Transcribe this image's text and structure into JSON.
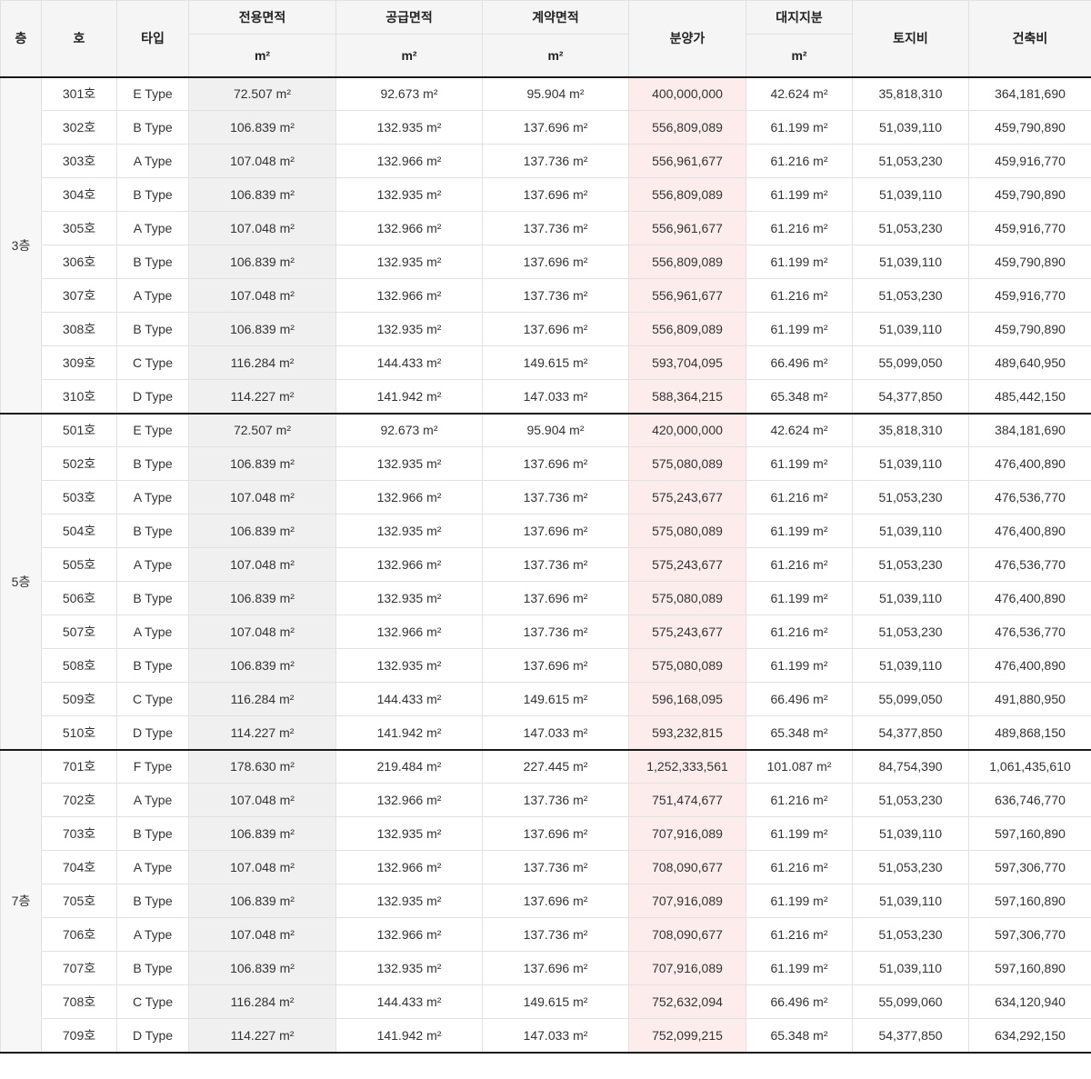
{
  "colors": {
    "header_bg": "#f5f5f5",
    "floor_column_bg": "#f7f7f7",
    "exclusive_area_bg": "#f0f0f0",
    "price_bg": "#fcecec",
    "border": "#e1e1e1",
    "divider": "#1a1a1a",
    "text": "#333333"
  },
  "table": {
    "headers": {
      "floor": "층",
      "unit": "호",
      "type": "타입",
      "exclusive_area": "전용면적",
      "supply_area": "공급면적",
      "contract_area": "계약면적",
      "price": "분양가",
      "land_share": "대지지분",
      "land_cost": "토지비",
      "construction_cost": "건축비",
      "sqm_label": "m²"
    },
    "sections": [
      {
        "floor": "3층",
        "rows": [
          {
            "unit": "301호",
            "type": "E Type",
            "exclusive": "72.507 m²",
            "supply": "92.673 m²",
            "contract": "95.904 m²",
            "price": "400,000,000",
            "land_share": "42.624 m²",
            "land_cost": "35,818,310",
            "construction_cost": "364,181,690"
          },
          {
            "unit": "302호",
            "type": "B Type",
            "exclusive": "106.839 m²",
            "supply": "132.935 m²",
            "contract": "137.696 m²",
            "price": "556,809,089",
            "land_share": "61.199 m²",
            "land_cost": "51,039,110",
            "construction_cost": "459,790,890"
          },
          {
            "unit": "303호",
            "type": "A Type",
            "exclusive": "107.048 m²",
            "supply": "132.966 m²",
            "contract": "137.736 m²",
            "price": "556,961,677",
            "land_share": "61.216 m²",
            "land_cost": "51,053,230",
            "construction_cost": "459,916,770"
          },
          {
            "unit": "304호",
            "type": "B Type",
            "exclusive": "106.839 m²",
            "supply": "132.935 m²",
            "contract": "137.696 m²",
            "price": "556,809,089",
            "land_share": "61.199 m²",
            "land_cost": "51,039,110",
            "construction_cost": "459,790,890"
          },
          {
            "unit": "305호",
            "type": "A Type",
            "exclusive": "107.048 m²",
            "supply": "132.966 m²",
            "contract": "137.736 m²",
            "price": "556,961,677",
            "land_share": "61.216 m²",
            "land_cost": "51,053,230",
            "construction_cost": "459,916,770"
          },
          {
            "unit": "306호",
            "type": "B Type",
            "exclusive": "106.839 m²",
            "supply": "132.935 m²",
            "contract": "137.696 m²",
            "price": "556,809,089",
            "land_share": "61.199 m²",
            "land_cost": "51,039,110",
            "construction_cost": "459,790,890"
          },
          {
            "unit": "307호",
            "type": "A Type",
            "exclusive": "107.048 m²",
            "supply": "132.966 m²",
            "contract": "137.736 m²",
            "price": "556,961,677",
            "land_share": "61.216 m²",
            "land_cost": "51,053,230",
            "construction_cost": "459,916,770"
          },
          {
            "unit": "308호",
            "type": "B Type",
            "exclusive": "106.839 m²",
            "supply": "132.935 m²",
            "contract": "137.696 m²",
            "price": "556,809,089",
            "land_share": "61.199 m²",
            "land_cost": "51,039,110",
            "construction_cost": "459,790,890"
          },
          {
            "unit": "309호",
            "type": "C Type",
            "exclusive": "116.284 m²",
            "supply": "144.433 m²",
            "contract": "149.615 m²",
            "price": "593,704,095",
            "land_share": "66.496 m²",
            "land_cost": "55,099,050",
            "construction_cost": "489,640,950"
          },
          {
            "unit": "310호",
            "type": "D Type",
            "exclusive": "114.227 m²",
            "supply": "141.942 m²",
            "contract": "147.033 m²",
            "price": "588,364,215",
            "land_share": "65.348 m²",
            "land_cost": "54,377,850",
            "construction_cost": "485,442,150"
          }
        ]
      },
      {
        "floor": "5층",
        "rows": [
          {
            "unit": "501호",
            "type": "E Type",
            "exclusive": "72.507 m²",
            "supply": "92.673 m²",
            "contract": "95.904 m²",
            "price": "420,000,000",
            "land_share": "42.624 m²",
            "land_cost": "35,818,310",
            "construction_cost": "384,181,690"
          },
          {
            "unit": "502호",
            "type": "B Type",
            "exclusive": "106.839 m²",
            "supply": "132.935 m²",
            "contract": "137.696 m²",
            "price": "575,080,089",
            "land_share": "61.199 m²",
            "land_cost": "51,039,110",
            "construction_cost": "476,400,890"
          },
          {
            "unit": "503호",
            "type": "A Type",
            "exclusive": "107.048 m²",
            "supply": "132.966 m²",
            "contract": "137.736 m²",
            "price": "575,243,677",
            "land_share": "61.216 m²",
            "land_cost": "51,053,230",
            "construction_cost": "476,536,770"
          },
          {
            "unit": "504호",
            "type": "B Type",
            "exclusive": "106.839 m²",
            "supply": "132.935 m²",
            "contract": "137.696 m²",
            "price": "575,080,089",
            "land_share": "61.199 m²",
            "land_cost": "51,039,110",
            "construction_cost": "476,400,890"
          },
          {
            "unit": "505호",
            "type": "A Type",
            "exclusive": "107.048 m²",
            "supply": "132.966 m²",
            "contract": "137.736 m²",
            "price": "575,243,677",
            "land_share": "61.216 m²",
            "land_cost": "51,053,230",
            "construction_cost": "476,536,770"
          },
          {
            "unit": "506호",
            "type": "B Type",
            "exclusive": "106.839 m²",
            "supply": "132.935 m²",
            "contract": "137.696 m²",
            "price": "575,080,089",
            "land_share": "61.199 m²",
            "land_cost": "51,039,110",
            "construction_cost": "476,400,890"
          },
          {
            "unit": "507호",
            "type": "A Type",
            "exclusive": "107.048 m²",
            "supply": "132.966 m²",
            "contract": "137.736 m²",
            "price": "575,243,677",
            "land_share": "61.216 m²",
            "land_cost": "51,053,230",
            "construction_cost": "476,536,770"
          },
          {
            "unit": "508호",
            "type": "B Type",
            "exclusive": "106.839 m²",
            "supply": "132.935 m²",
            "contract": "137.696 m²",
            "price": "575,080,089",
            "land_share": "61.199 m²",
            "land_cost": "51,039,110",
            "construction_cost": "476,400,890"
          },
          {
            "unit": "509호",
            "type": "C Type",
            "exclusive": "116.284 m²",
            "supply": "144.433 m²",
            "contract": "149.615 m²",
            "price": "596,168,095",
            "land_share": "66.496 m²",
            "land_cost": "55,099,050",
            "construction_cost": "491,880,950"
          },
          {
            "unit": "510호",
            "type": "D Type",
            "exclusive": "114.227 m²",
            "supply": "141.942 m²",
            "contract": "147.033 m²",
            "price": "593,232,815",
            "land_share": "65.348 m²",
            "land_cost": "54,377,850",
            "construction_cost": "489,868,150"
          }
        ]
      },
      {
        "floor": "7층",
        "rows": [
          {
            "unit": "701호",
            "type": "F Type",
            "exclusive": "178.630 m²",
            "supply": "219.484 m²",
            "contract": "227.445 m²",
            "price": "1,252,333,561",
            "land_share": "101.087 m²",
            "land_cost": "84,754,390",
            "construction_cost": "1,061,435,610"
          },
          {
            "unit": "702호",
            "type": "A Type",
            "exclusive": "107.048 m²",
            "supply": "132.966 m²",
            "contract": "137.736 m²",
            "price": "751,474,677",
            "land_share": "61.216 m²",
            "land_cost": "51,053,230",
            "construction_cost": "636,746,770"
          },
          {
            "unit": "703호",
            "type": "B Type",
            "exclusive": "106.839 m²",
            "supply": "132.935 m²",
            "contract": "137.696 m²",
            "price": "707,916,089",
            "land_share": "61.199 m²",
            "land_cost": "51,039,110",
            "construction_cost": "597,160,890"
          },
          {
            "unit": "704호",
            "type": "A Type",
            "exclusive": "107.048 m²",
            "supply": "132.966 m²",
            "contract": "137.736 m²",
            "price": "708,090,677",
            "land_share": "61.216 m²",
            "land_cost": "51,053,230",
            "construction_cost": "597,306,770"
          },
          {
            "unit": "705호",
            "type": "B Type",
            "exclusive": "106.839 m²",
            "supply": "132.935 m²",
            "contract": "137.696 m²",
            "price": "707,916,089",
            "land_share": "61.199 m²",
            "land_cost": "51,039,110",
            "construction_cost": "597,160,890"
          },
          {
            "unit": "706호",
            "type": "A Type",
            "exclusive": "107.048 m²",
            "supply": "132.966 m²",
            "contract": "137.736 m²",
            "price": "708,090,677",
            "land_share": "61.216 m²",
            "land_cost": "51,053,230",
            "construction_cost": "597,306,770"
          },
          {
            "unit": "707호",
            "type": "B Type",
            "exclusive": "106.839 m²",
            "supply": "132.935 m²",
            "contract": "137.696 m²",
            "price": "707,916,089",
            "land_share": "61.199 m²",
            "land_cost": "51,039,110",
            "construction_cost": "597,160,890"
          },
          {
            "unit": "708호",
            "type": "C Type",
            "exclusive": "116.284 m²",
            "supply": "144.433 m²",
            "contract": "149.615 m²",
            "price": "752,632,094",
            "land_share": "66.496 m²",
            "land_cost": "55,099,060",
            "construction_cost": "634,120,940"
          },
          {
            "unit": "709호",
            "type": "D Type",
            "exclusive": "114.227 m²",
            "supply": "141.942 m²",
            "contract": "147.033 m²",
            "price": "752,099,215",
            "land_share": "65.348 m²",
            "land_cost": "54,377,850",
            "construction_cost": "634,292,150"
          }
        ]
      }
    ]
  }
}
